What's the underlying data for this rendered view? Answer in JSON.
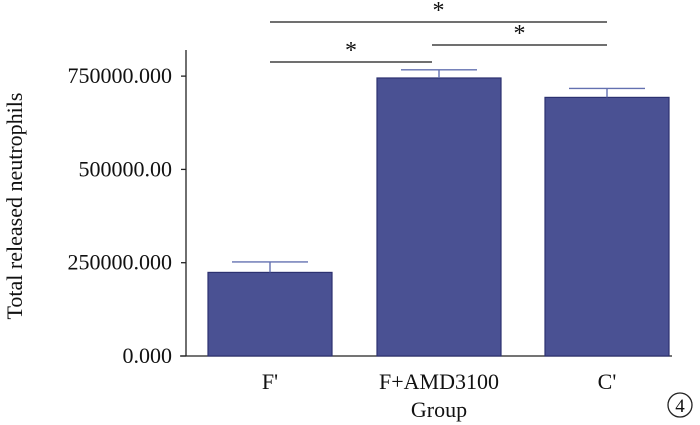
{
  "chart_data": {
    "type": "bar",
    "categories": [
      "F'",
      "F+AMD3100",
      "C'"
    ],
    "values": [
      224000,
      745000,
      693000
    ],
    "errors": [
      28000,
      22000,
      24000
    ],
    "xlabel": "Group",
    "ylabel": "Total released neutrophils",
    "ylim": [
      0,
      820000
    ],
    "y_ticks": [
      0,
      250000,
      500000,
      750000
    ],
    "y_tick_labels": [
      "0.000",
      "250000.000",
      "500000.00",
      "750000.000"
    ],
    "significance": [
      {
        "from": 0,
        "to": 2,
        "label": "*"
      },
      {
        "from": 0,
        "to": 1,
        "label": "*"
      },
      {
        "from": 1,
        "to": 2,
        "label": "*"
      }
    ],
    "panel_label": "4",
    "grid": false,
    "legend": "none"
  },
  "colors": {
    "bar_fill": "#4a5193",
    "bar_stroke": "#2c3170",
    "error_bar": "#6370b0",
    "significance_line": "#1a1a1a",
    "axis": "#222222",
    "text": "#111111"
  }
}
